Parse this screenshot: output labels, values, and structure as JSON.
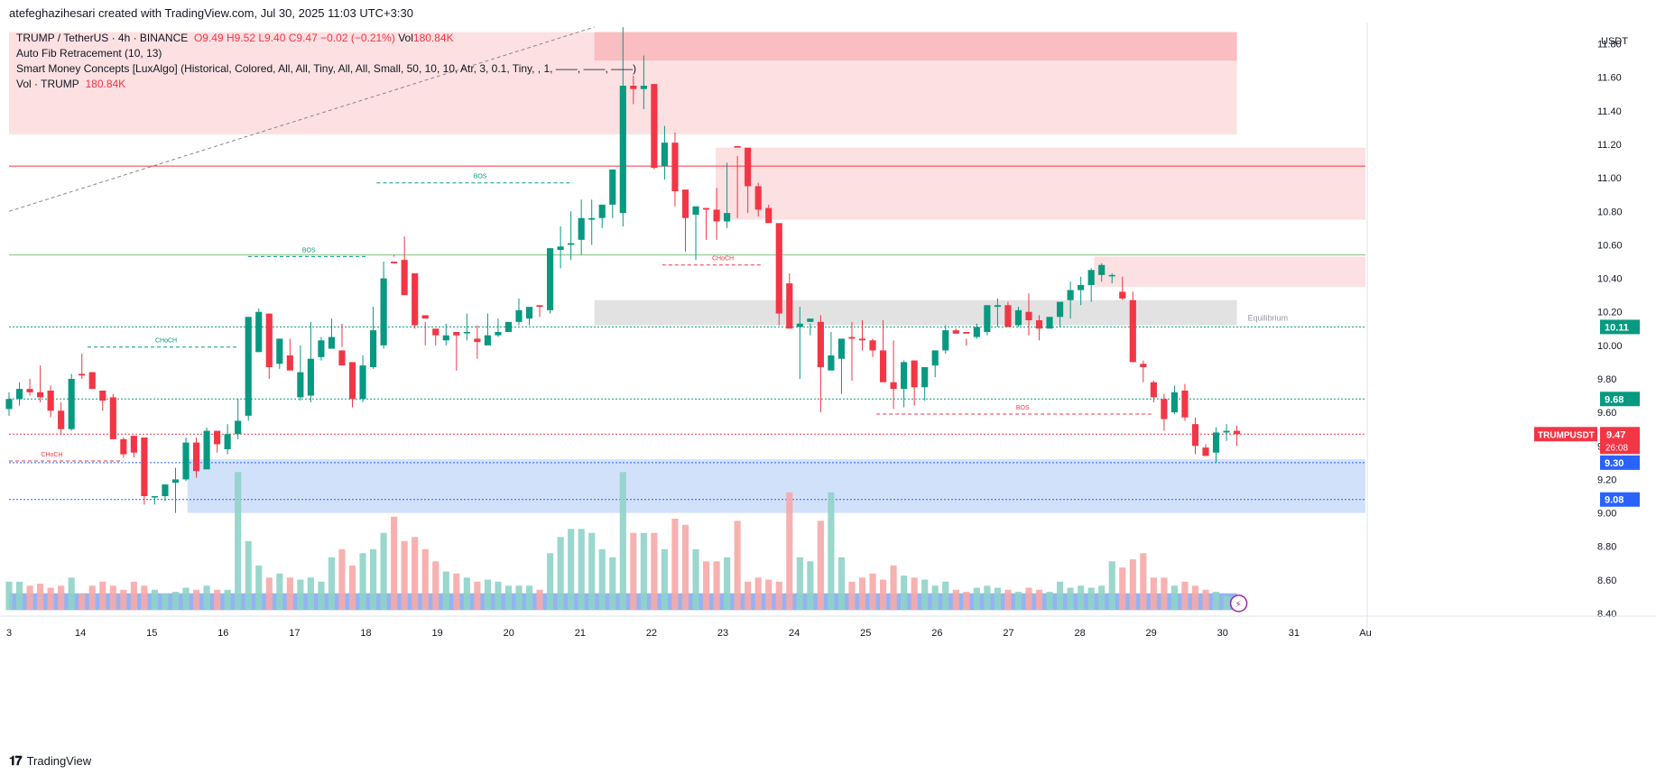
{
  "header": {
    "attribution": "atefeghazihesari created with TradingView.com, Jul 30, 2025 11:03 UTC+3:30",
    "symbol_line": "TRUMP / TetherUS · 4h · BINANCE",
    "ohlc": {
      "o": "O9.49",
      "h": "H9.52",
      "l": "L9.40",
      "c": "C9.47",
      "chg": "−0.02 (−0.21%)",
      "vol_label": "Vol",
      "vol": "180.84K"
    },
    "indicator1": "Auto Fib Retracement (10, 13)",
    "indicator2": "Smart Money Concepts [LuxAlgo] (Historical, Colored, All, All, Tiny, All, All, Small, 50, 10, 10, Atr, 3, 0.1, Tiny, , 1, ——, ——, ——)",
    "indicator3_label": "Vol · TRUMP",
    "indicator3_value": "180.84K"
  },
  "footer": {
    "brand": "TradingView"
  },
  "colors": {
    "up": "#089981",
    "down": "#f23645",
    "upVol": "#8fd3c8",
    "downVol": "#f7a9a9",
    "supply": "#fbd3d6",
    "demand": "#c9dcf9",
    "equilibrium": "#d8d8d8"
  },
  "chart_data": {
    "type": "candlestick",
    "pair": "TRUMP / TetherUS",
    "interval": "4h",
    "exchange": "BINANCE",
    "currency": "USDT",
    "ylim": [
      8.4,
      11.9
    ],
    "yticks": [
      "11.80",
      "11.60",
      "11.40",
      "11.20",
      "11.00",
      "10.80",
      "10.60",
      "10.40",
      "10.20",
      "10.00",
      "9.80",
      "9.60",
      "9.40",
      "9.20",
      "9.00",
      "8.80",
      "8.60",
      "8.40"
    ],
    "xlim": [
      13.0,
      32.0
    ],
    "xticks": [
      {
        "t": 13,
        "label": "3"
      },
      {
        "t": 14,
        "label": "14"
      },
      {
        "t": 15,
        "label": "15"
      },
      {
        "t": 16,
        "label": "16"
      },
      {
        "t": 17,
        "label": "17"
      },
      {
        "t": 18,
        "label": "18"
      },
      {
        "t": 19,
        "label": "19"
      },
      {
        "t": 20,
        "label": "20"
      },
      {
        "t": 21,
        "label": "21"
      },
      {
        "t": 22,
        "label": "22"
      },
      {
        "t": 23,
        "label": "23"
      },
      {
        "t": 24,
        "label": "24"
      },
      {
        "t": 25,
        "label": "25"
      },
      {
        "t": 26,
        "label": "26"
      },
      {
        "t": 27,
        "label": "27"
      },
      {
        "t": 28,
        "label": "28"
      },
      {
        "t": 29,
        "label": "29"
      },
      {
        "t": 30,
        "label": "30"
      },
      {
        "t": 31,
        "label": "31"
      },
      {
        "t": 32,
        "label": "Au"
      }
    ],
    "candles_ohlcv": [
      [
        9.62,
        9.72,
        9.58,
        9.68,
        70
      ],
      [
        9.68,
        9.78,
        9.64,
        9.74,
        70
      ],
      [
        9.74,
        9.8,
        9.7,
        9.72,
        60
      ],
      [
        9.72,
        9.88,
        9.66,
        9.69,
        65
      ],
      [
        9.73,
        9.76,
        9.57,
        9.61,
        55
      ],
      [
        9.61,
        9.66,
        9.47,
        9.5,
        60
      ],
      [
        9.5,
        9.83,
        9.49,
        9.8,
        80
      ],
      [
        9.83,
        9.95,
        9.8,
        9.82,
        40
      ],
      [
        9.84,
        9.84,
        9.76,
        9.74,
        60
      ],
      [
        9.73,
        9.73,
        9.61,
        9.67,
        70
      ],
      [
        9.69,
        9.71,
        9.48,
        9.44,
        60
      ],
      [
        9.44,
        9.45,
        9.33,
        9.35,
        50
      ],
      [
        9.46,
        9.46,
        9.33,
        9.36,
        70
      ],
      [
        9.45,
        9.45,
        9.05,
        9.1,
        60
      ],
      [
        9.1,
        9.1,
        9.05,
        9.1,
        50
      ],
      [
        9.1,
        9.17,
        9.07,
        9.17,
        40
      ],
      [
        9.18,
        9.27,
        9.0,
        9.2,
        45
      ],
      [
        9.2,
        9.45,
        9.19,
        9.42,
        55
      ],
      [
        9.42,
        9.45,
        9.21,
        9.25,
        50
      ],
      [
        9.26,
        9.51,
        9.26,
        9.49,
        60
      ],
      [
        9.49,
        9.49,
        9.36,
        9.41,
        50
      ],
      [
        9.38,
        9.53,
        9.35,
        9.47,
        50
      ],
      [
        9.47,
        9.68,
        9.44,
        9.55,
        340
      ],
      [
        9.58,
        10.17,
        9.55,
        10.17,
        170
      ],
      [
        9.96,
        10.22,
        9.96,
        10.2,
        110
      ],
      [
        10.19,
        10.12,
        9.8,
        9.87,
        80
      ],
      [
        9.89,
        10.04,
        9.86,
        10.04,
        90
      ],
      [
        9.94,
        10.04,
        9.92,
        9.85,
        80
      ],
      [
        9.69,
        10.0,
        9.67,
        9.84,
        75
      ],
      [
        9.7,
        10.14,
        9.66,
        9.92,
        80
      ],
      [
        9.93,
        10.05,
        9.91,
        10.03,
        70
      ],
      [
        9.98,
        10.16,
        9.99,
        10.05,
        130
      ],
      [
        9.97,
        10.13,
        9.99,
        9.88,
        150
      ],
      [
        9.9,
        9.88,
        9.63,
        9.68,
        110
      ],
      [
        9.68,
        9.94,
        9.66,
        9.88,
        140
      ],
      [
        9.87,
        10.23,
        9.86,
        10.09,
        150
      ],
      [
        10.0,
        10.5,
        9.98,
        10.4,
        190
      ],
      [
        10.5,
        10.54,
        10.53,
        10.49,
        230
      ],
      [
        10.51,
        10.65,
        10.35,
        10.3,
        170
      ],
      [
        10.43,
        10.43,
        10.1,
        10.12,
        180
      ],
      [
        10.18,
        10.14,
        10.0,
        10.16,
        150
      ],
      [
        10.1,
        10.06,
        10.0,
        10.06,
        120
      ],
      [
        10.03,
        10.13,
        10.0,
        10.06,
        95
      ],
      [
        10.08,
        10.08,
        9.85,
        10.06,
        90
      ],
      [
        10.08,
        10.19,
        10.03,
        10.08,
        80
      ],
      [
        10.04,
        10.12,
        9.92,
        10.02,
        70
      ],
      [
        10.0,
        10.19,
        10.03,
        10.06,
        75
      ],
      [
        10.06,
        10.16,
        10.05,
        10.08,
        70
      ],
      [
        10.08,
        10.14,
        10.09,
        10.14,
        60
      ],
      [
        10.14,
        10.28,
        10.12,
        10.21,
        60
      ],
      [
        10.16,
        10.2,
        10.12,
        10.23,
        60
      ],
      [
        10.24,
        10.17,
        10.24,
        10.23,
        50
      ],
      [
        10.21,
        10.58,
        10.19,
        10.58,
        140
      ],
      [
        10.57,
        10.71,
        10.46,
        10.59,
        180
      ],
      [
        10.6,
        10.8,
        10.51,
        10.61,
        200
      ],
      [
        10.63,
        10.87,
        10.54,
        10.76,
        200
      ],
      [
        10.75,
        10.87,
        10.6,
        10.76,
        190
      ],
      [
        10.76,
        10.81,
        10.7,
        10.84,
        150
      ],
      [
        10.84,
        11.0,
        10.76,
        11.05,
        130
      ],
      [
        10.79,
        11.9,
        10.71,
        11.55,
        340
      ],
      [
        11.55,
        11.61,
        11.44,
        11.53,
        190
      ],
      [
        11.53,
        11.73,
        11.41,
        11.55,
        190
      ],
      [
        11.56,
        11.56,
        11.05,
        11.06,
        190
      ],
      [
        11.07,
        11.31,
        10.99,
        11.21,
        150
      ],
      [
        11.21,
        11.27,
        10.83,
        10.92,
        225
      ],
      [
        10.93,
        10.77,
        10.56,
        10.76,
        210
      ],
      [
        10.78,
        10.8,
        10.51,
        10.83,
        150
      ],
      [
        10.82,
        10.82,
        10.63,
        10.81,
        120
      ],
      [
        10.81,
        10.94,
        10.63,
        10.74,
        120
      ],
      [
        10.74,
        11.09,
        10.7,
        10.79,
        130
      ],
      [
        11.19,
        11.13,
        10.76,
        11.18,
        220
      ],
      [
        11.18,
        11.17,
        10.79,
        10.95,
        70
      ],
      [
        10.95,
        10.97,
        10.77,
        10.81,
        80
      ],
      [
        10.82,
        10.84,
        10.79,
        10.73,
        75
      ],
      [
        10.73,
        10.56,
        10.12,
        10.19,
        70
      ],
      [
        10.37,
        10.43,
        10.29,
        10.1,
        290
      ],
      [
        10.11,
        10.23,
        9.8,
        10.13,
        130
      ],
      [
        10.14,
        10.13,
        10.06,
        10.16,
        120
      ],
      [
        10.14,
        10.18,
        9.6,
        9.87,
        220
      ],
      [
        9.85,
        10.08,
        9.87,
        9.94,
        290
      ],
      [
        9.92,
        10.0,
        9.71,
        10.04,
        130
      ],
      [
        10.05,
        10.14,
        9.79,
        10.04,
        70
      ],
      [
        10.04,
        10.15,
        9.97,
        10.03,
        80
      ],
      [
        10.03,
        10.04,
        9.93,
        9.97,
        90
      ],
      [
        9.97,
        10.15,
        9.79,
        9.78,
        75
      ],
      [
        9.78,
        10.03,
        9.62,
        9.74,
        110
      ],
      [
        9.74,
        9.91,
        9.63,
        9.9,
        85
      ],
      [
        9.91,
        9.91,
        9.64,
        9.75,
        80
      ],
      [
        9.75,
        9.82,
        9.67,
        9.87,
        75
      ],
      [
        9.88,
        9.93,
        9.81,
        9.97,
        60
      ],
      [
        9.97,
        10.12,
        9.95,
        10.09,
        70
      ],
      [
        10.09,
        10.1,
        10.07,
        10.07,
        50
      ],
      [
        10.08,
        10.04,
        10.0,
        10.07,
        45
      ],
      [
        10.05,
        10.13,
        10.04,
        10.11,
        55
      ],
      [
        10.08,
        10.17,
        10.06,
        10.24,
        60
      ],
      [
        10.23,
        10.28,
        10.11,
        10.24,
        55
      ],
      [
        10.24,
        10.26,
        10.13,
        10.11,
        50
      ],
      [
        10.12,
        10.23,
        10.11,
        10.21,
        45
      ],
      [
        10.2,
        10.31,
        10.06,
        10.15,
        55
      ],
      [
        10.15,
        10.18,
        10.03,
        10.1,
        50
      ],
      [
        10.1,
        10.14,
        10.11,
        10.17,
        45
      ],
      [
        10.17,
        10.24,
        10.11,
        10.26,
        70
      ],
      [
        10.27,
        10.38,
        10.16,
        10.33,
        55
      ],
      [
        10.33,
        10.41,
        10.24,
        10.36,
        60
      ],
      [
        10.36,
        10.46,
        10.26,
        10.45,
        55
      ],
      [
        10.42,
        10.49,
        10.38,
        10.48,
        60
      ],
      [
        10.42,
        10.43,
        10.37,
        10.42,
        120
      ],
      [
        10.32,
        10.41,
        10.27,
        10.28,
        105
      ],
      [
        10.27,
        10.32,
        9.9,
        9.9,
        125
      ],
      [
        9.89,
        9.91,
        9.78,
        9.87,
        140
      ],
      [
        9.78,
        9.79,
        9.66,
        9.69,
        80
      ],
      [
        9.68,
        9.71,
        9.49,
        9.56,
        80
      ],
      [
        9.6,
        9.76,
        9.59,
        9.72,
        60
      ],
      [
        9.73,
        9.77,
        9.55,
        9.57,
        70
      ],
      [
        9.53,
        9.57,
        9.35,
        9.4,
        60
      ],
      [
        9.39,
        9.41,
        9.34,
        9.34,
        50
      ],
      [
        9.36,
        9.51,
        9.3,
        9.48,
        45
      ],
      [
        9.48,
        9.53,
        9.43,
        9.49,
        35
      ],
      [
        9.49,
        9.52,
        9.4,
        9.47,
        25
      ]
    ],
    "zones": [
      {
        "type": "supply",
        "y1": 11.87,
        "y2": 11.26,
        "x1": 13.0,
        "x2": 30.2
      },
      {
        "type": "supply_dark",
        "y1": 11.87,
        "y2": 11.7,
        "x1": 21.2,
        "x2": 30.2
      },
      {
        "type": "supply",
        "y1": 11.18,
        "y2": 10.75,
        "x1": 22.9,
        "x2": 32.0
      },
      {
        "type": "supply",
        "y1": 10.53,
        "y2": 10.35,
        "x1": 28.2,
        "x2": 32.0
      },
      {
        "type": "equilibrium",
        "y1": 10.27,
        "y2": 10.12,
        "x1": 21.2,
        "x2": 30.2,
        "label": "Equilibrium"
      },
      {
        "type": "demand",
        "y1": 9.32,
        "y2": 9.0,
        "x1": 15.5,
        "x2": 32.0
      },
      {
        "type": "vol_demand",
        "y1": 8.52,
        "y2": 8.42,
        "x1": 13.0,
        "x2": 30.2
      }
    ],
    "structure_labels": [
      {
        "text": "BOS",
        "x": 17.2,
        "y": 10.53,
        "x1": 16.35,
        "x2": 18.0,
        "color": "up"
      },
      {
        "text": "BOS",
        "x": 19.6,
        "y": 10.97,
        "x1": 18.15,
        "x2": 20.9,
        "color": "up"
      },
      {
        "text": "CHoCH",
        "x": 15.2,
        "y": 9.99,
        "x1": 14.1,
        "x2": 16.2,
        "color": "up"
      },
      {
        "text": "CHoCH",
        "x": 13.6,
        "y": 9.31,
        "x1": 13.0,
        "x2": 14.6,
        "color": "down"
      },
      {
        "text": "CHoCH",
        "x": 23.0,
        "y": 10.48,
        "x1": 22.15,
        "x2": 23.55,
        "color": "down"
      },
      {
        "text": "BOS",
        "x": 27.2,
        "y": 9.59,
        "x1": 25.15,
        "x2": 29.0,
        "color": "down"
      }
    ],
    "horizontal_lines": [
      {
        "y": 11.07,
        "color": "#f23645",
        "style": "solid"
      },
      {
        "y": 10.54,
        "color": "#7bc67e",
        "style": "solid"
      },
      {
        "y": 10.11,
        "color": "#089981",
        "style": "dotted",
        "label": "10.11"
      },
      {
        "y": 9.68,
        "color": "#089981",
        "style": "dotted",
        "label": "9.68"
      },
      {
        "y": 9.3,
        "color": "#2962ff",
        "style": "dotted",
        "label": "9.30"
      },
      {
        "y": 9.08,
        "color": "#2962ff",
        "style": "dotted",
        "label": "9.08"
      },
      {
        "y": 9.47,
        "color": "#f23645",
        "style": "dotted"
      }
    ],
    "price_tag": {
      "symbol": "TRUMPUSDT",
      "price": "9.47",
      "countdown": "26:08"
    }
  }
}
